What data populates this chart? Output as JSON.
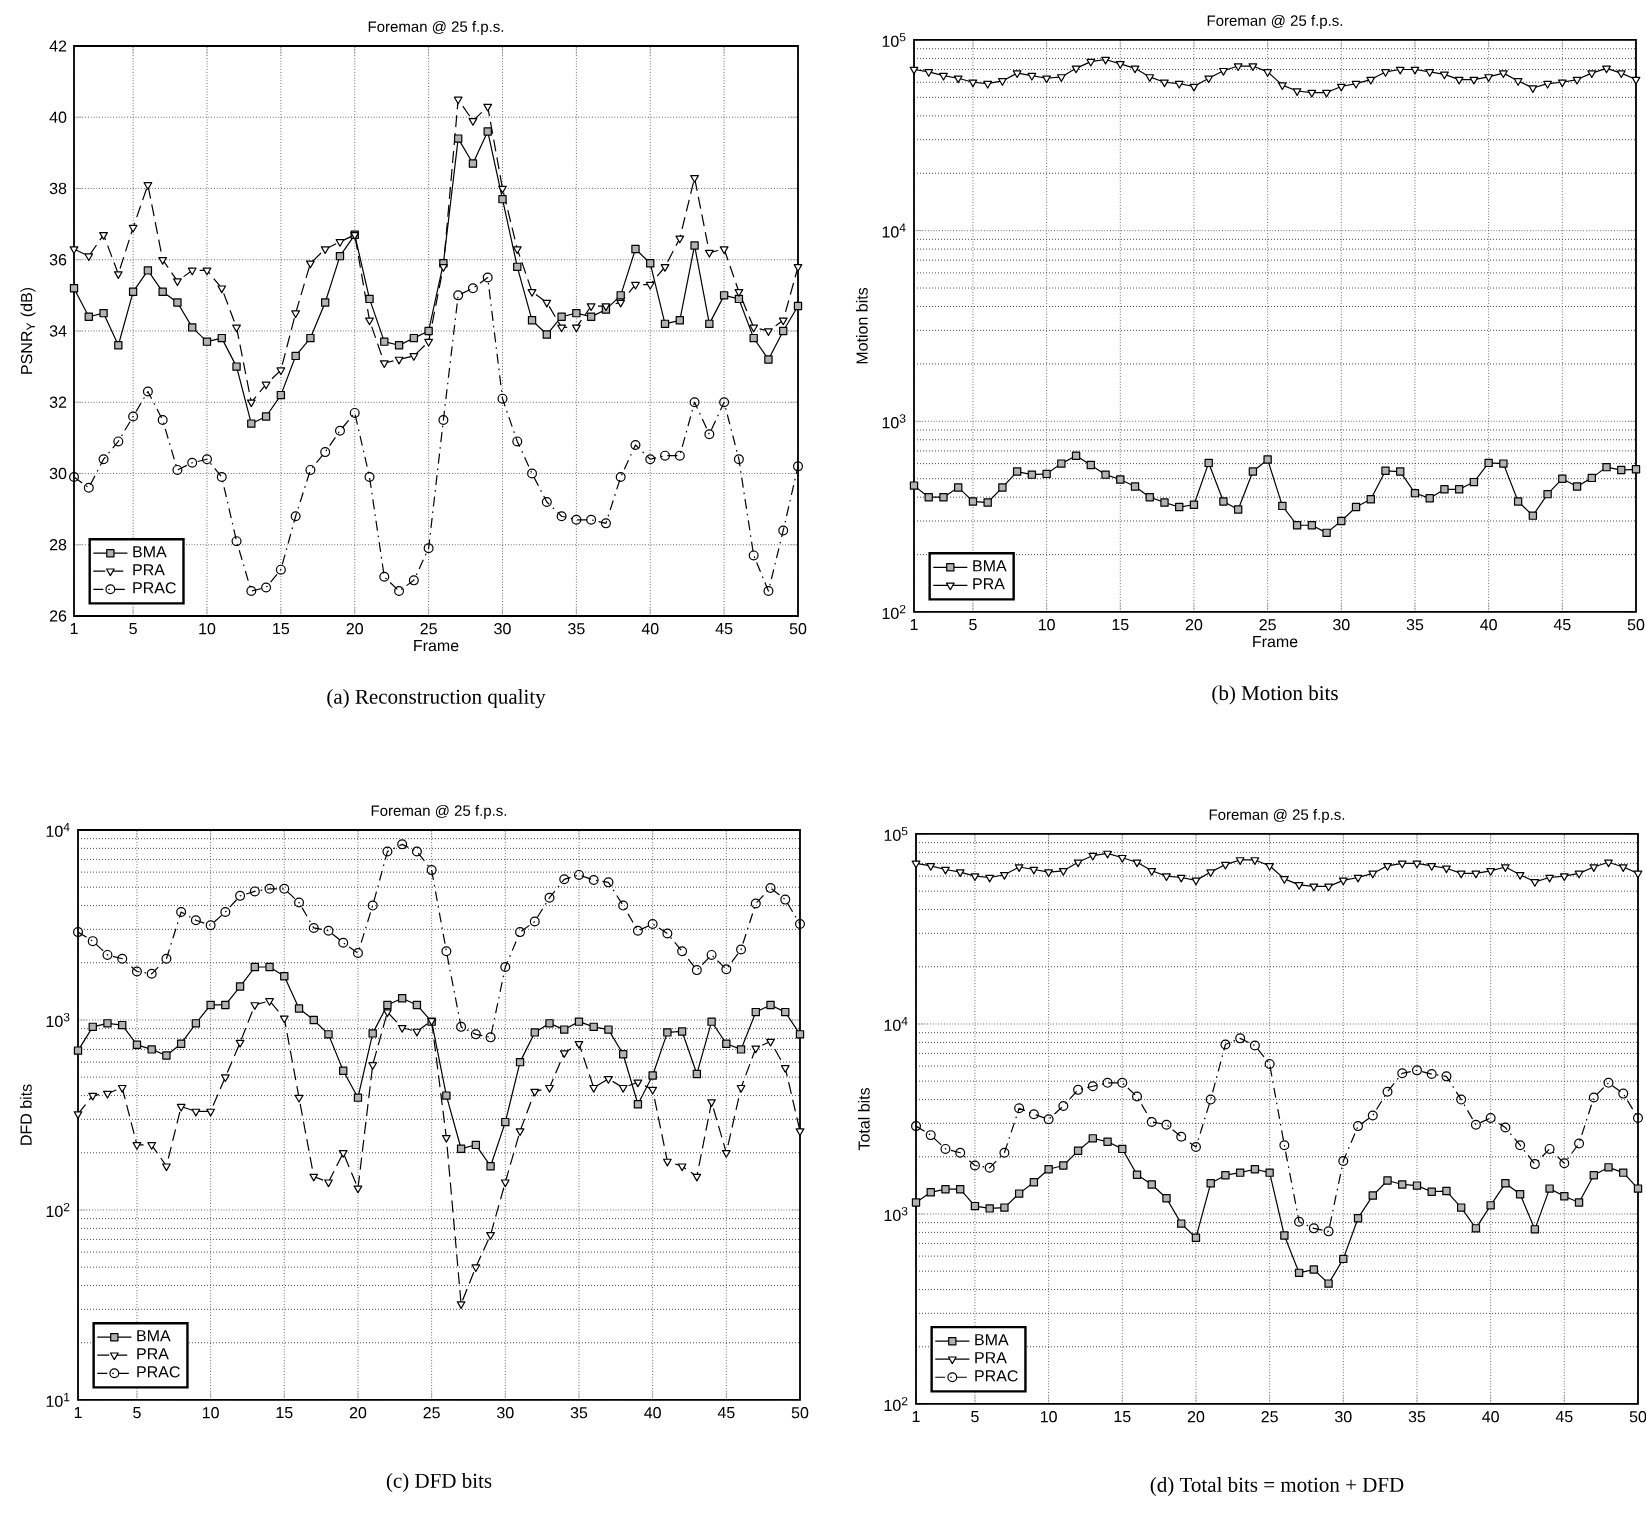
{
  "chart_data": [
    {
      "type": "line",
      "title": "Foreman @ 25 f.p.s.",
      "xlabel": "Frame",
      "ylabel": "PSNR$_{Y}$ (dB)",
      "annotations": [
        "(a) Reconstruction quality"
      ],
      "x": [
        1,
        2,
        3,
        4,
        5,
        6,
        7,
        8,
        9,
        10,
        11,
        12,
        13,
        14,
        15,
        16,
        17,
        18,
        19,
        20,
        21,
        22,
        23,
        24,
        25,
        26,
        27,
        28,
        29,
        30,
        31,
        32,
        33,
        34,
        35,
        36,
        37,
        38,
        39,
        40,
        41,
        42,
        43,
        44,
        45,
        46,
        47,
        48,
        49,
        50
      ],
      "xlim": [
        1,
        50
      ],
      "xticks": [
        1,
        5,
        10,
        15,
        20,
        25,
        30,
        35,
        40,
        45,
        50
      ],
      "ylim": [
        26,
        42
      ],
      "yticks": [
        26,
        28,
        30,
        32,
        34,
        36,
        38,
        40,
        42
      ],
      "grid": true,
      "legend": "bottom left",
      "series": [
        {
          "name": "BMA",
          "color": "#000000",
          "marker": "square",
          "line_style": "solid",
          "values": [
            35.2,
            34.4,
            34.5,
            33.6,
            35.1,
            35.7,
            35.1,
            34.8,
            34.1,
            33.7,
            33.8,
            33.0,
            31.4,
            31.6,
            32.2,
            33.3,
            33.8,
            34.8,
            36.1,
            36.7,
            34.9,
            33.7,
            33.6,
            33.8,
            34.0,
            35.9,
            39.4,
            38.7,
            39.6,
            37.7,
            35.8,
            34.3,
            33.9,
            34.4,
            34.5,
            34.4,
            34.6,
            35.0,
            36.3,
            35.9,
            34.2,
            34.3,
            36.4,
            34.2,
            35.0,
            34.9,
            33.8,
            33.2,
            34.0,
            34.7
          ]
        },
        {
          "name": "PRA",
          "color": "#000000",
          "marker": "triangle",
          "line_style": "dashed",
          "values": [
            36.3,
            36.1,
            36.7,
            35.6,
            36.9,
            38.1,
            36.0,
            35.4,
            35.7,
            35.7,
            35.2,
            34.1,
            32.0,
            32.5,
            32.9,
            34.5,
            35.9,
            36.3,
            36.5,
            36.7,
            34.3,
            33.1,
            33.2,
            33.3,
            33.7,
            35.8,
            40.5,
            39.9,
            40.3,
            38.0,
            36.3,
            35.1,
            34.8,
            34.1,
            34.1,
            34.7,
            34.7,
            34.8,
            35.3,
            35.3,
            35.8,
            36.6,
            38.3,
            36.2,
            36.3,
            35.1,
            34.1,
            34.0,
            34.3,
            35.8
          ]
        },
        {
          "name": "PRAC",
          "color": "#000000",
          "marker": "circle",
          "line_style": "dotted",
          "values": [
            29.9,
            29.6,
            30.4,
            30.9,
            31.6,
            32.3,
            31.5,
            30.1,
            30.3,
            30.4,
            29.9,
            28.1,
            26.7,
            26.8,
            27.3,
            28.8,
            30.1,
            30.6,
            31.2,
            31.7,
            29.9,
            27.1,
            26.7,
            27.0,
            27.9,
            31.5,
            35.0,
            35.2,
            35.5,
            32.1,
            30.9,
            30.0,
            29.2,
            28.8,
            28.7,
            28.7,
            28.6,
            29.9,
            30.8,
            30.4,
            30.5,
            30.5,
            32.0,
            31.1,
            32.0,
            30.4,
            27.7,
            26.7,
            28.4,
            30.2
          ]
        }
      ]
    },
    {
      "type": "line",
      "title": "Foreman @ 25 f.p.s.",
      "xlabel": "Frame",
      "ylabel": "Motion bits",
      "annotations": [
        "(b) Motion bits"
      ],
      "x": [
        1,
        2,
        3,
        4,
        5,
        6,
        7,
        8,
        9,
        10,
        11,
        12,
        13,
        14,
        15,
        16,
        17,
        18,
        19,
        20,
        21,
        22,
        23,
        24,
        25,
        26,
        27,
        28,
        29,
        30,
        31,
        32,
        33,
        34,
        35,
        36,
        37,
        38,
        39,
        40,
        41,
        42,
        43,
        44,
        45,
        46,
        47,
        48,
        49,
        50
      ],
      "xlim": [
        1,
        50
      ],
      "xticks": [
        1,
        5,
        10,
        15,
        20,
        25,
        30,
        35,
        40,
        45,
        50
      ],
      "ylim": [
        100,
        100000
      ],
      "yticks": [
        {
          "value": 100,
          "label": "10$^{2}$"
        },
        {
          "value": 1000,
          "label": "10$^{3}$"
        },
        {
          "value": 10000,
          "label": "10$^{4}$"
        },
        {
          "value": 100000,
          "label": "10$^{5}$"
        }
      ],
      "log": true,
      "grid": true,
      "legend": "bottom left",
      "series": [
        {
          "name": "BMA",
          "color": "#000000",
          "marker": "square",
          "line_style": "solid",
          "values": [
            460,
            400,
            400,
            450,
            380,
            375,
            450,
            545,
            525,
            530,
            600,
            660,
            590,
            525,
            495,
            455,
            400,
            375,
            355,
            365,
            605,
            380,
            345,
            545,
            630,
            360,
            285,
            285,
            260,
            300,
            355,
            390,
            550,
            545,
            420,
            395,
            440,
            440,
            480,
            605,
            600,
            380,
            320,
            415,
            500,
            455,
            505,
            575,
            555,
            560
          ]
        },
        {
          "name": "PRA",
          "color": "#000000",
          "marker": "triangle",
          "line_style": "solid",
          "values": [
            70000,
            68000,
            65000,
            63000,
            60000,
            59000,
            61000,
            67000,
            65000,
            63000,
            64000,
            71000,
            77000,
            79000,
            75000,
            71000,
            64000,
            60000,
            59000,
            57000,
            63000,
            69000,
            73000,
            73000,
            68000,
            58000,
            54000,
            53000,
            53000,
            57000,
            59000,
            62000,
            68000,
            70000,
            70000,
            68000,
            66000,
            62000,
            62000,
            64000,
            67000,
            61000,
            56000,
            59000,
            60000,
            62000,
            67000,
            71000,
            67000,
            62000
          ]
        }
      ]
    },
    {
      "type": "line",
      "title": "Foreman @ 25 f.p.s.",
      "ylabel": "DFD bits",
      "annotations": [
        "(c) DFD bits"
      ],
      "x": [
        1,
        2,
        3,
        4,
        5,
        6,
        7,
        8,
        9,
        10,
        11,
        12,
        13,
        14,
        15,
        16,
        17,
        18,
        19,
        20,
        21,
        22,
        23,
        24,
        25,
        26,
        27,
        28,
        29,
        30,
        31,
        32,
        33,
        34,
        35,
        36,
        37,
        38,
        39,
        40,
        41,
        42,
        43,
        44,
        45,
        46,
        47,
        48,
        49,
        50
      ],
      "xlim": [
        1,
        50
      ],
      "xticks": [
        1,
        5,
        10,
        15,
        20,
        25,
        30,
        35,
        40,
        45,
        50
      ],
      "ylim": [
        10,
        10000
      ],
      "yticks": [
        {
          "value": 10,
          "label": "10$^{1}$"
        },
        {
          "value": 100,
          "label": "10$^{2}$"
        },
        {
          "value": 1000,
          "label": "10$^{3}$"
        },
        {
          "value": 10000,
          "label": "10$^{4}$"
        }
      ],
      "log": true,
      "grid": true,
      "legend": "bottom left",
      "series": [
        {
          "name": "BMA",
          "color": "#000000",
          "marker": "square",
          "line_style": "solid",
          "values": [
            690,
            920,
            960,
            940,
            740,
            700,
            650,
            750,
            960,
            1200,
            1200,
            1500,
            1900,
            1900,
            1700,
            1150,
            1000,
            840,
            540,
            390,
            850,
            1200,
            1300,
            1200,
            980,
            400,
            210,
            220,
            170,
            290,
            600,
            860,
            960,
            890,
            980,
            920,
            890,
            660,
            360,
            510,
            860,
            870,
            520,
            980,
            750,
            700,
            1100,
            1200,
            1100,
            840
          ]
        },
        {
          "name": "PRA",
          "color": "#000000",
          "marker": "triangle",
          "line_style": "dashed",
          "values": [
            320,
            400,
            410,
            440,
            220,
            220,
            170,
            350,
            330,
            330,
            500,
            760,
            1200,
            1260,
            1020,
            390,
            150,
            140,
            200,
            130,
            580,
            1100,
            910,
            870,
            990,
            240,
            32,
            50,
            74,
            140,
            260,
            420,
            440,
            670,
            750,
            440,
            490,
            440,
            470,
            430,
            180,
            170,
            150,
            370,
            200,
            440,
            710,
            770,
            560,
            260
          ]
        },
        {
          "name": "PRAC",
          "color": "#000000",
          "marker": "circle",
          "line_style": "dotted",
          "values": [
            2900,
            2600,
            2200,
            2100,
            1800,
            1750,
            2100,
            3700,
            3350,
            3150,
            3700,
            4500,
            4750,
            4900,
            4900,
            4150,
            3050,
            2950,
            2550,
            2250,
            4000,
            7700,
            8400,
            7700,
            6150,
            2300,
            920,
            840,
            810,
            1900,
            2900,
            3300,
            4400,
            5500,
            5800,
            5450,
            5300,
            4000,
            2950,
            3200,
            2850,
            2300,
            1830,
            2200,
            1850,
            2350,
            4100,
            4950,
            4300,
            3200
          ]
        }
      ]
    },
    {
      "type": "line",
      "title": "Foreman @ 25 f.p.s.",
      "ylabel": "Total bits",
      "annotations": [
        "(d) Total bits = motion + DFD"
      ],
      "x": [
        1,
        2,
        3,
        4,
        5,
        6,
        7,
        8,
        9,
        10,
        11,
        12,
        13,
        14,
        15,
        16,
        17,
        18,
        19,
        20,
        21,
        22,
        23,
        24,
        25,
        26,
        27,
        28,
        29,
        30,
        31,
        32,
        33,
        34,
        35,
        36,
        37,
        38,
        39,
        40,
        41,
        42,
        43,
        44,
        45,
        46,
        47,
        48,
        49,
        50
      ],
      "xlim": [
        1,
        50
      ],
      "xticks": [
        1,
        5,
        10,
        15,
        20,
        25,
        30,
        35,
        40,
        45,
        50
      ],
      "ylim": [
        100,
        100000
      ],
      "yticks": [
        {
          "value": 100,
          "label": "10$^{2}$"
        },
        {
          "value": 1000,
          "label": "10$^{3}$"
        },
        {
          "value": 10000,
          "label": "10$^{4}$"
        },
        {
          "value": 100000,
          "label": "10$^{5}$"
        }
      ],
      "log": true,
      "grid": true,
      "legend": "bottom left",
      "series": [
        {
          "name": "BMA",
          "color": "#000000",
          "marker": "square",
          "line_style": "solid",
          "values": [
            1150,
            1300,
            1350,
            1350,
            1100,
            1070,
            1080,
            1280,
            1470,
            1720,
            1800,
            2150,
            2500,
            2400,
            2200,
            1610,
            1430,
            1210,
            890,
            750,
            1450,
            1600,
            1650,
            1720,
            1650,
            770,
            490,
            510,
            430,
            580,
            950,
            1250,
            1500,
            1430,
            1410,
            1310,
            1320,
            1080,
            840,
            1110,
            1450,
            1270,
            830,
            1360,
            1240,
            1150,
            1600,
            1760,
            1650,
            1360
          ]
        },
        {
          "name": "PRA",
          "color": "#000000",
          "marker": "triangle",
          "line_style": "solid",
          "values": [
            70000,
            68000,
            65000,
            63000,
            60000,
            59000,
            61000,
            67000,
            65000,
            63000,
            64000,
            71000,
            77000,
            79000,
            75000,
            71000,
            64000,
            60000,
            59000,
            57000,
            63000,
            69000,
            73000,
            73000,
            68000,
            58000,
            54000,
            53000,
            53000,
            57000,
            59000,
            62000,
            68000,
            70000,
            70000,
            68000,
            66000,
            62000,
            62000,
            64000,
            67000,
            61000,
            56000,
            59000,
            60000,
            62000,
            67000,
            71000,
            67000,
            62000
          ]
        },
        {
          "name": "PRAC",
          "color": "#000000",
          "marker": "circle",
          "line_style": "dotted",
          "values": [
            2900,
            2600,
            2200,
            2100,
            1800,
            1750,
            2100,
            3600,
            3350,
            3150,
            3700,
            4500,
            4700,
            4900,
            4900,
            4150,
            3050,
            2950,
            2550,
            2250,
            4000,
            7800,
            8400,
            7700,
            6150,
            2300,
            910,
            840,
            810,
            1900,
            2900,
            3300,
            4400,
            5500,
            5700,
            5450,
            5300,
            4000,
            2950,
            3200,
            2850,
            2300,
            1830,
            2200,
            1850,
            2350,
            4100,
            4900,
            4300,
            3200
          ]
        }
      ]
    }
  ]
}
